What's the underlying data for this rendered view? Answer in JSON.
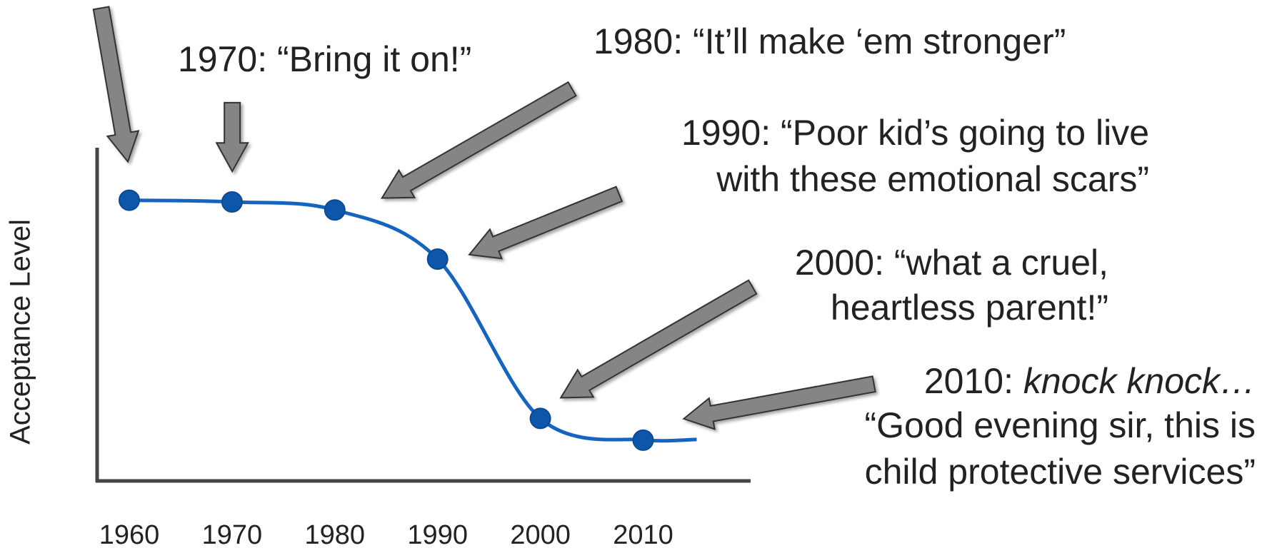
{
  "chart_data": {
    "type": "line",
    "y_label": "Acceptance Level",
    "categories": [
      "1960",
      "1970",
      "1980",
      "1990",
      "2000",
      "2010"
    ],
    "series": [
      {
        "name": "Acceptance Level",
        "color": "#1565c0",
        "values": [
          84.3,
          83.8,
          81.4,
          66.7,
          19.1,
          12.6
        ]
      }
    ],
    "ylim": [
      0,
      100
    ],
    "annotations": [
      {
        "lines": [
          "1970: “Bring it on!”"
        ]
      },
      {
        "lines": [
          "1980: “It’ll make ‘em stronger”"
        ]
      },
      {
        "lines": [
          "1990: “Poor kid’s going to live",
          "with these emotional scars”"
        ]
      },
      {
        "lines": [
          "2000: “what a cruel,",
          "heartless parent!”"
        ]
      },
      {
        "lead": "2010:",
        "emphasis": "knock knock…",
        "lines": [
          "“Good evening sir, this is",
          "child protective services”"
        ]
      }
    ]
  }
}
